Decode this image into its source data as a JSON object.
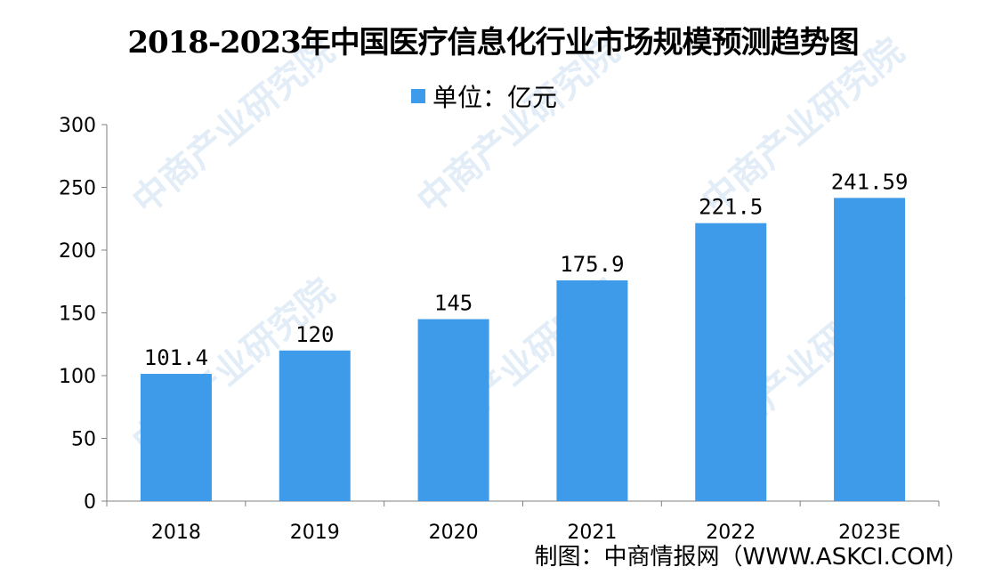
{
  "chart_data": {
    "type": "bar",
    "title": "2018-2023年中国医疗信息化行业市场规模预测趋势图",
    "legend": "单位：亿元",
    "legend_position": "top-center",
    "categories": [
      "2018",
      "2019",
      "2020",
      "2021",
      "2022",
      "2023E"
    ],
    "values": [
      101.4,
      120,
      145,
      175.9,
      221.5,
      241.59
    ],
    "value_labels": [
      "101.4",
      "120",
      "145",
      "175.9",
      "221.5",
      "241.59"
    ],
    "ylim": [
      0,
      300
    ],
    "yticks": [
      0,
      50,
      100,
      150,
      200,
      250,
      300
    ],
    "grid": false,
    "bar_color": "#3d9be9"
  },
  "source": "制图：中商情报网（WWW.ASKCI.COM）",
  "watermark": "中商产业研究院"
}
